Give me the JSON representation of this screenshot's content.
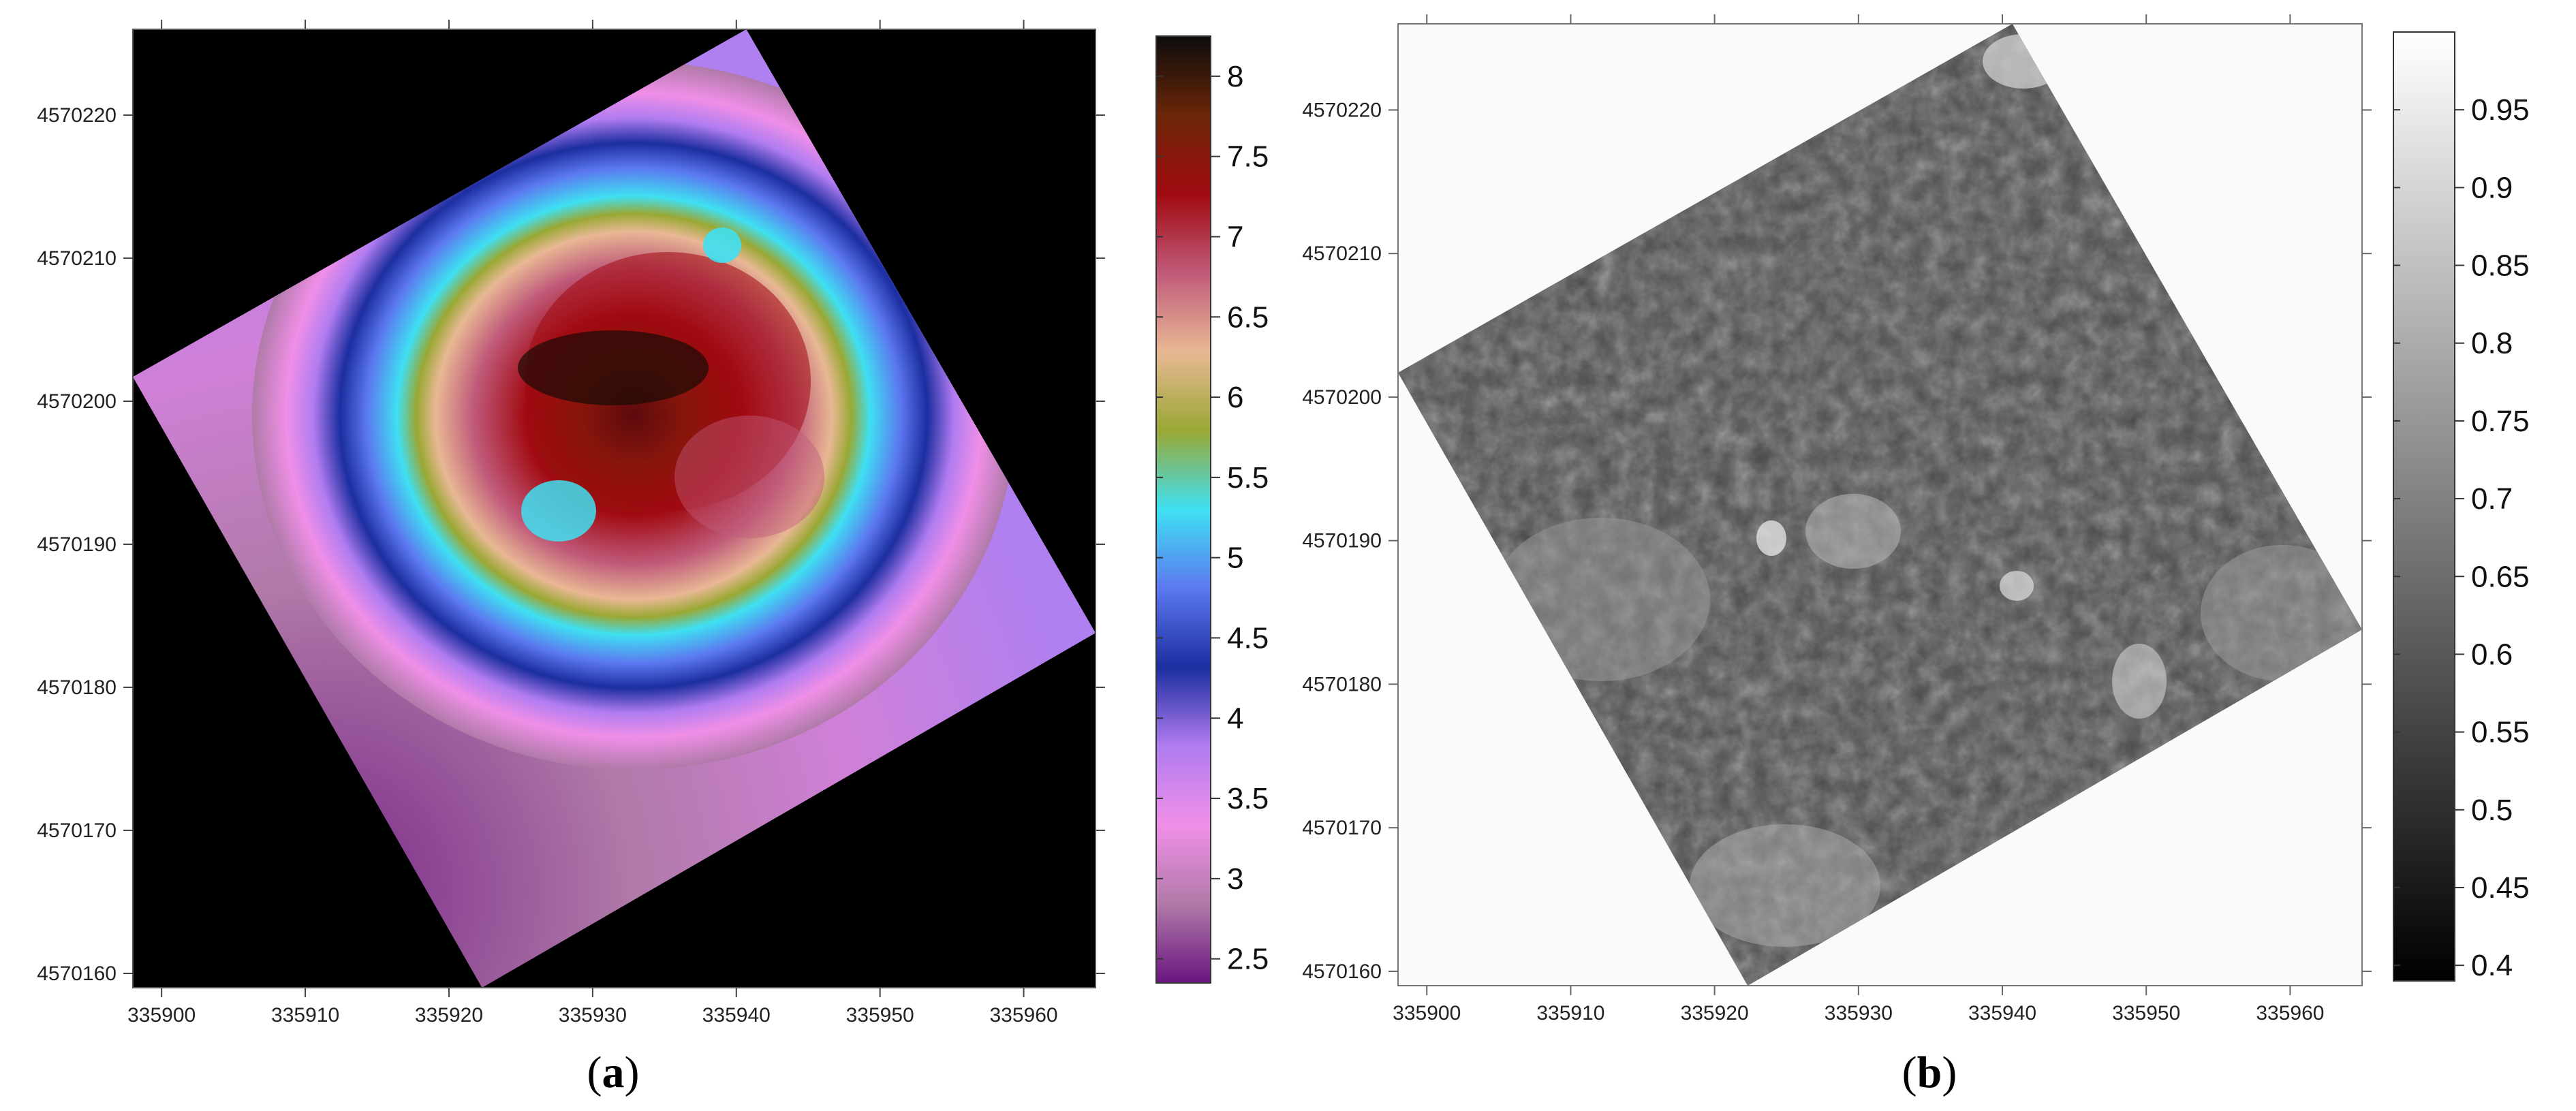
{
  "chart_data": [
    {
      "type": "heatmap",
      "panel_label": "a",
      "x_ticks": [
        335900,
        335910,
        335920,
        335930,
        335940,
        335950,
        335960
      ],
      "y_ticks": [
        4570160,
        4570170,
        4570180,
        4570190,
        4570200,
        4570210,
        4570220
      ],
      "xlim": [
        335898,
        335965
      ],
      "ylim": [
        4570159,
        4570226
      ],
      "colorbar": {
        "ticks": [
          2.5,
          3,
          3.5,
          4,
          4.5,
          5,
          5.5,
          6,
          6.5,
          7,
          7.5,
          8
        ],
        "range": [
          2.35,
          8.25
        ],
        "colormap": [
          "#6a1580",
          "#b07aa8",
          "#f08fe8",
          "#b07cf0",
          "#1c2ea0",
          "#5c78f0",
          "#3fe0f2",
          "#9aa834",
          "#e8b894",
          "#c05a7a",
          "#a00a10",
          "#6b2608",
          "#0c0c0c"
        ]
      },
      "outside_color": "#000000",
      "footprint_corners": [
        [
          335898,
          4570201.7
        ],
        [
          335940.7,
          4570226
        ],
        [
          335965,
          4570183.8
        ],
        [
          335922.3,
          4570159
        ]
      ]
    },
    {
      "type": "heatmap",
      "panel_label": "b",
      "x_ticks": [
        335900,
        335910,
        335920,
        335930,
        335940,
        335950,
        335960
      ],
      "y_ticks": [
        4570160,
        4570170,
        4570180,
        4570190,
        4570200,
        4570210,
        4570220
      ],
      "xlim": [
        335898,
        335965
      ],
      "ylim": [
        4570159,
        4570226
      ],
      "colorbar": {
        "ticks": [
          0.4,
          0.45,
          0.5,
          0.55,
          0.6,
          0.65,
          0.7,
          0.75,
          0.8,
          0.85,
          0.9,
          0.95
        ],
        "range": [
          0.39,
          1.0
        ],
        "colormap": [
          "#000000",
          "#ffffff"
        ]
      },
      "outside_color": "#fafafa",
      "footprint_corners": [
        [
          335898,
          4570201.7
        ],
        [
          335940.7,
          4570226
        ],
        [
          335965,
          4570183.8
        ],
        [
          335922.3,
          4570159
        ]
      ]
    }
  ]
}
